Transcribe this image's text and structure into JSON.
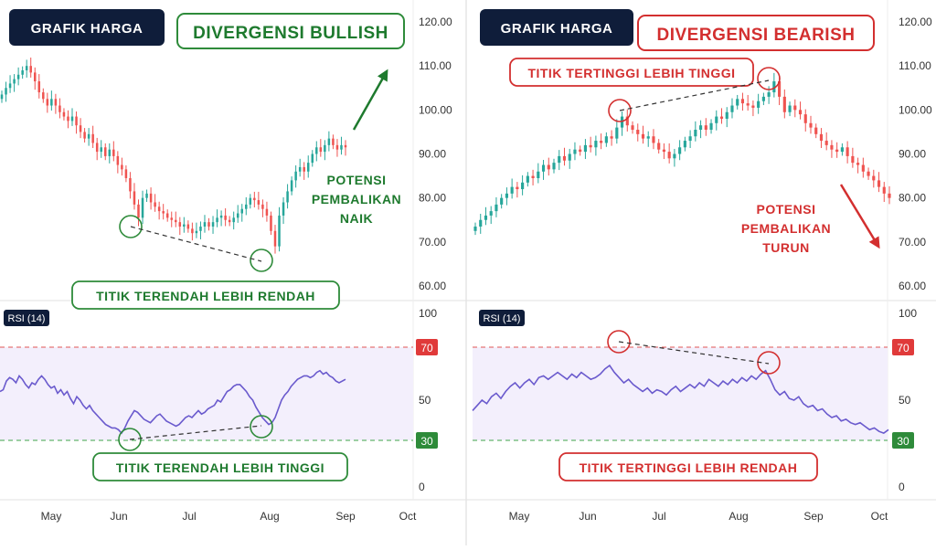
{
  "colors": {
    "bull": "#26A69A",
    "bear": "#EF5350",
    "green_text": "#1E7A2E",
    "red_text": "#D32F2F",
    "navy": "#0F1D3A",
    "rsi_line": "#6A5ACD",
    "rsi_band": "#F3EFFC",
    "grid": "#E6E6E6"
  },
  "months": [
    "May",
    "Jun",
    "Jul",
    "Aug",
    "Sep",
    "Oct"
  ],
  "rsi_label": "RSI (14)",
  "bullish": {
    "badge": "GRAFIK HARGA",
    "title": "DIVERGENSI BULLISH",
    "price_note": "TITIK TERENDAH LEBIH RENDAH",
    "rsi_note": "TITIK TERENDAH LEBIH TINGGI",
    "potensi": [
      "POTENSI",
      "PEMBALIKAN",
      "NAIK"
    ],
    "rsi_upper": "70",
    "rsi_lower": "30"
  },
  "bearish": {
    "badge": "GRAFIK HARGA",
    "title": "DIVERGENSI BEARISH",
    "price_note": "TITIK TERTINGGI LEBIH TINGGI",
    "rsi_note": "TITIK TERTINGGI LEBIH RENDAH",
    "potensi": [
      "POTENSI",
      "PEMBALIKAN",
      "TURUN"
    ],
    "rsi_upper": "70",
    "rsi_lower": "30"
  },
  "chart_data": [
    {
      "type": "candlestick",
      "panel": "left price",
      "y_ticks": [
        "120.00",
        "110.00",
        "100.00",
        "90.00",
        "80.00",
        "70.00",
        "60.00"
      ],
      "ylim": [
        58,
        122
      ],
      "x_ticks": [
        "May",
        "Jun",
        "Jul",
        "Aug",
        "Sep",
        "Oct"
      ],
      "close": [
        103.5,
        105,
        106,
        107,
        108,
        109,
        110,
        108.5,
        106.5,
        104,
        102.5,
        101,
        102.5,
        101,
        99.5,
        98.5,
        97.5,
        98.5,
        96.5,
        95,
        93.5,
        94.5,
        92.5,
        90.5,
        91.5,
        89.5,
        91,
        89.5,
        87.5,
        86.5,
        84.5,
        81.5,
        78.5,
        75.5,
        80,
        81,
        79,
        78,
        77,
        76.5,
        75.5,
        75,
        74.5,
        73.5,
        74,
        73,
        72,
        72.5,
        73.5,
        74.5,
        73.5,
        74.5,
        75.5,
        76,
        75,
        74.5,
        75.5,
        76.5,
        77.5,
        78.5,
        80,
        79.5,
        78.5,
        77.5,
        76,
        72.5,
        69,
        76,
        79,
        81.5,
        84,
        86,
        87,
        86,
        88,
        90,
        91.5,
        90.5,
        92,
        93.5,
        92,
        91,
        92,
        91.5
      ]
    },
    {
      "type": "line",
      "panel": "left RSI",
      "y_ticks": [
        "100",
        "50",
        "0"
      ],
      "ylim": [
        0,
        100
      ],
      "bands": [
        70,
        30
      ],
      "x_ticks": [
        "May",
        "Jun",
        "Jul",
        "Aug",
        "Sep",
        "Oct"
      ],
      "values": [
        55,
        56,
        61,
        63,
        62,
        60,
        64,
        62,
        59,
        57,
        60,
        59,
        62,
        64,
        62,
        59,
        57,
        58,
        54,
        56,
        53,
        55,
        51,
        48,
        52,
        50,
        47,
        45,
        47,
        44,
        42,
        40,
        38,
        36,
        35,
        34,
        34,
        33,
        31,
        34,
        38,
        41,
        44,
        43,
        41,
        39,
        38,
        37,
        39,
        41,
        42,
        40,
        38,
        37,
        36,
        35,
        36,
        38,
        40,
        41,
        40,
        42,
        44,
        42,
        43,
        45,
        46,
        47,
        50,
        49,
        52,
        55,
        56,
        58,
        59,
        59,
        57,
        55,
        52,
        50,
        46,
        43,
        40,
        38,
        36,
        37,
        40,
        45,
        50,
        53,
        55,
        58,
        60,
        62,
        63,
        64,
        64,
        63,
        64,
        66,
        67,
        65,
        66,
        64,
        63,
        61,
        60,
        61,
        62
      ]
    },
    {
      "type": "candlestick",
      "panel": "right price",
      "y_ticks": [
        "120.00",
        "110.00",
        "100.00",
        "90.00",
        "80.00",
        "70.00",
        "60.00"
      ],
      "ylim": [
        58,
        122
      ],
      "x_ticks": [
        "May",
        "Jun",
        "Jul",
        "Aug",
        "Sep",
        "Oct"
      ],
      "close": [
        73.5,
        75,
        76,
        77,
        78.5,
        80,
        81,
        82.5,
        82,
        83.5,
        85,
        84.5,
        86,
        87.5,
        86.5,
        88,
        89.5,
        88.5,
        90,
        91,
        90.5,
        92,
        91.5,
        93,
        92.5,
        94,
        93.5,
        96,
        98.5,
        96.5,
        95.5,
        94.5,
        93.5,
        94,
        92.5,
        91,
        90.5,
        89,
        90,
        91.5,
        93,
        94,
        95.5,
        96.5,
        95.5,
        97,
        98.5,
        98,
        99.5,
        101,
        102.5,
        101.5,
        101,
        100.5,
        102,
        103,
        104,
        106.5,
        103,
        99.5,
        101,
        100,
        99,
        97,
        96,
        94.5,
        93,
        92,
        91,
        90.5,
        91.5,
        89.5,
        88,
        87.5,
        86,
        85,
        84,
        82.5,
        81,
        80
      ]
    },
    {
      "type": "line",
      "panel": "right RSI",
      "y_ticks": [
        "100",
        "50",
        "0"
      ],
      "ylim": [
        0,
        100
      ],
      "bands": [
        70,
        30
      ],
      "x_ticks": [
        "May",
        "Jun",
        "Jul",
        "Aug",
        "Sep",
        "Oct"
      ],
      "values": [
        44,
        47,
        50,
        48,
        52,
        54,
        51,
        55,
        58,
        60,
        57,
        60,
        62,
        59,
        63,
        64,
        62,
        64,
        66,
        64,
        62,
        65,
        63,
        66,
        64,
        62,
        63,
        65,
        68,
        70,
        66,
        63,
        60,
        62,
        59,
        57,
        55,
        57,
        54,
        56,
        55,
        53,
        56,
        58,
        55,
        57,
        59,
        57,
        60,
        58,
        62,
        60,
        58,
        61,
        59,
        62,
        60,
        63,
        61,
        64,
        62,
        65,
        67,
        62,
        56,
        53,
        55,
        51,
        50,
        52,
        48,
        46,
        47,
        44,
        45,
        42,
        40,
        41,
        38,
        39,
        37,
        36,
        37,
        35,
        33,
        34,
        32,
        31,
        33
      ]
    }
  ]
}
